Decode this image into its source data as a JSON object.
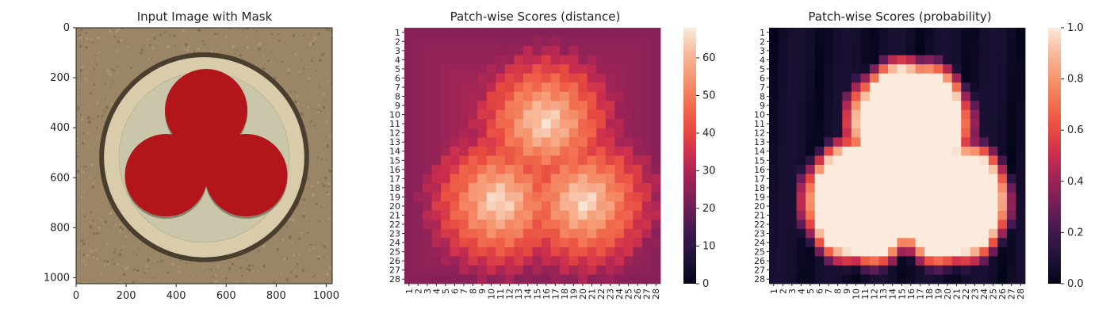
{
  "chart_data": [
    {
      "type": "image",
      "title": "Input Image with Mask",
      "xlim": [
        0,
        1024
      ],
      "ylim": [
        1024,
        0
      ],
      "xticks": [
        0,
        200,
        400,
        600,
        800,
        1000
      ],
      "yticks": [
        0,
        200,
        400,
        600,
        800,
        1000
      ],
      "colors": {
        "background": "#9a8566",
        "ring": "#d9ccab",
        "groove": "#4a3e2e",
        "mask": "#b3161a",
        "inner_plate": "#c2c0a6"
      },
      "mask_lobes": [
        {
          "cx": 520,
          "cy": 330,
          "r": 165
        },
        {
          "cx": 360,
          "cy": 590,
          "r": 165
        },
        {
          "cx": 680,
          "cy": 590,
          "r": 165
        }
      ],
      "disc": {
        "cx": 512,
        "cy": 518,
        "r": 410
      }
    },
    {
      "type": "heatmap",
      "title": "Patch-wise Scores (distance)",
      "rows": 28,
      "cols": 28,
      "xlabels": [
        "1",
        "2",
        "3",
        "4",
        "5",
        "6",
        "7",
        "8",
        "9",
        "10",
        "11",
        "12",
        "13",
        "14",
        "15",
        "16",
        "17",
        "18",
        "19",
        "20",
        "21",
        "22",
        "23",
        "24",
        "25",
        "26",
        "27",
        "28"
      ],
      "ylabels": [
        "1",
        "2",
        "3",
        "4",
        "5",
        "6",
        "7",
        "8",
        "9",
        "10",
        "11",
        "12",
        "13",
        "14",
        "15",
        "16",
        "17",
        "18",
        "19",
        "20",
        "21",
        "22",
        "23",
        "24",
        "25",
        "26",
        "27",
        "28"
      ],
      "colorbar": {
        "min": 0,
        "max": 68,
        "ticks": [
          0,
          10,
          20,
          30,
          40,
          50,
          60
        ]
      },
      "value_range": [
        22,
        68
      ]
    },
    {
      "type": "heatmap",
      "title": "Patch-wise Scores (probability)",
      "rows": 28,
      "cols": 28,
      "xlabels": [
        "1",
        "2",
        "3",
        "4",
        "5",
        "6",
        "7",
        "8",
        "9",
        "10",
        "11",
        "12",
        "13",
        "14",
        "15",
        "16",
        "17",
        "18",
        "19",
        "20",
        "21",
        "22",
        "23",
        "24",
        "25",
        "26",
        "27",
        "28"
      ],
      "ylabels": [
        "1",
        "2",
        "3",
        "4",
        "5",
        "6",
        "7",
        "8",
        "9",
        "10",
        "11",
        "12",
        "13",
        "14",
        "15",
        "16",
        "17",
        "18",
        "19",
        "20",
        "21",
        "22",
        "23",
        "24",
        "25",
        "26",
        "27",
        "28"
      ],
      "colorbar": {
        "min": 0.0,
        "max": 1.0,
        "ticks": [
          "0.0",
          "0.2",
          "0.4",
          "0.6",
          "0.8",
          "1.0"
        ]
      },
      "value_range": [
        0.0,
        1.0
      ]
    }
  ]
}
